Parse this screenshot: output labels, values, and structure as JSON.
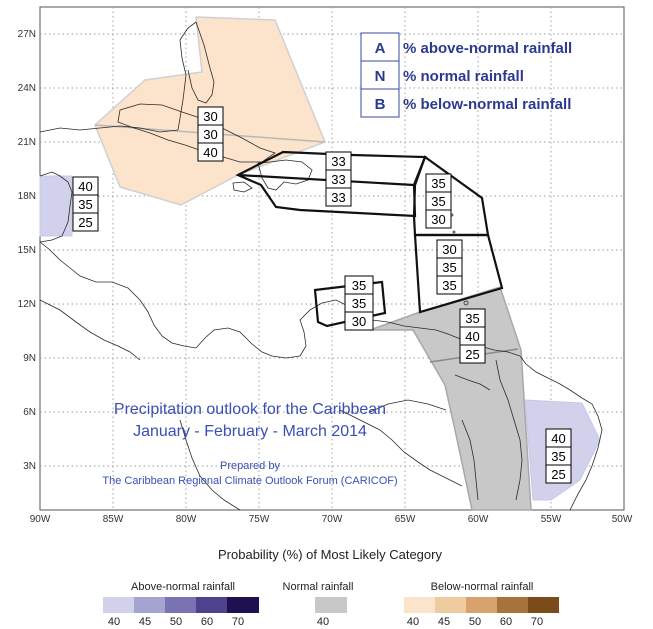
{
  "map": {
    "lat_labels": [
      "27N",
      "24N",
      "21N",
      "18N",
      "15N",
      "12N",
      "9N",
      "6N",
      "3N"
    ],
    "lon_labels": [
      "90W",
      "85W",
      "80W",
      "75W",
      "70W",
      "65W",
      "60W",
      "55W",
      "50W"
    ],
    "colors": {
      "above": [
        "#d1d1ec",
        "#a5a3cf",
        "#7a73b1",
        "#4e428e",
        "#1f1150"
      ],
      "normal": "#c8c8c8",
      "below": [
        "#fbe4cb",
        "#efcc9f",
        "#d8a26d",
        "#a8723b",
        "#7b4c19"
      ]
    },
    "legend_box": {
      "rows": [
        {
          "key": "A",
          "text": "% above-normal rainfall"
        },
        {
          "key": "N",
          "text": "% normal rainfall"
        },
        {
          "key": "B",
          "text": "% below-normal rainfall"
        }
      ]
    },
    "regions": [
      {
        "id": "bahamas-cuba",
        "fill": "below",
        "level": 40,
        "probs": [
          "30",
          "30",
          "40"
        ]
      },
      {
        "id": "belize",
        "fill": "above",
        "level": 40,
        "probs": [
          "40",
          "35",
          "25"
        ]
      },
      {
        "id": "hispaniola-pr",
        "fill": "none",
        "probs": [
          "33",
          "33",
          "33"
        ]
      },
      {
        "id": "leeward-islands",
        "fill": "none",
        "probs": [
          "35",
          "35",
          "30"
        ]
      },
      {
        "id": "windward-islands",
        "fill": "none",
        "probs": [
          "30",
          "35",
          "35"
        ]
      },
      {
        "id": "abc-islands",
        "fill": "none",
        "probs": [
          "35",
          "35",
          "30"
        ]
      },
      {
        "id": "trinidad-guyana",
        "fill": "normal",
        "level": 40,
        "probs": [
          "35",
          "40",
          "25"
        ]
      },
      {
        "id": "french-guiana",
        "fill": "above",
        "level": 40,
        "probs": [
          "40",
          "35",
          "25"
        ]
      }
    ],
    "title_line1": "Precipitation outlook for the Caribbean",
    "title_line2": "January - February - March 2014",
    "prepared_by": "Prepared by",
    "organization": "The Caribbean Regional Climate Outlook Forum (CARICOF)"
  },
  "legend": {
    "title": "Probability (%) of Most Likely Category",
    "above_label": "Above-normal rainfall",
    "normal_label": "Normal rainfall",
    "below_label": "Below-normal rainfall",
    "above_values": [
      "40",
      "45",
      "50",
      "60",
      "70"
    ],
    "normal_values": [
      "40"
    ],
    "below_values": [
      "40",
      "45",
      "50",
      "60",
      "70"
    ]
  }
}
